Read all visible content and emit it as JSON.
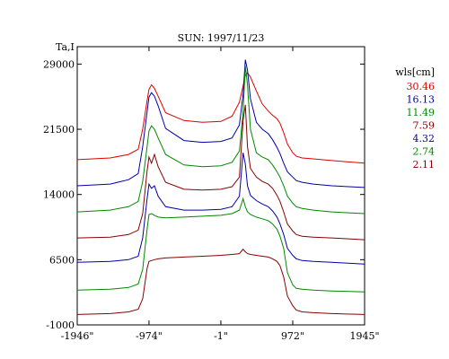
{
  "chart_data": {
    "type": "line",
    "title": "SUN: 1997/11/23",
    "ylabel": "Ta,I",
    "xlabel": "",
    "xlim": [
      -1946,
      1945
    ],
    "ylim": [
      -1000,
      31000
    ],
    "x_ticks": [
      -1946,
      -974,
      -1,
      972,
      1945
    ],
    "x_tick_labels": [
      "-1946\"",
      "-974\"",
      "-1\"",
      "972\"",
      "1945\""
    ],
    "y_ticks": [
      -1000,
      6500,
      14000,
      21500,
      29000
    ],
    "y_tick_labels": [
      "-1000",
      "6500",
      "14000",
      "21500",
      "29000"
    ],
    "legend_title": "wls[cm]",
    "legend_position": "right",
    "x": [
      -1946,
      -1500,
      -1250,
      -1120,
      -1060,
      -1000,
      -974,
      -940,
      -900,
      -850,
      -750,
      -500,
      -250,
      0,
      150,
      250,
      300,
      330,
      360,
      400,
      480,
      560,
      640,
      700,
      760,
      800,
      850,
      900,
      972,
      1020,
      1100,
      1250,
      1500,
      1945
    ],
    "series": [
      {
        "name": "30.46",
        "color": "#dd0000",
        "values": [
          18000,
          18200,
          18600,
          19200,
          21500,
          24800,
          26100,
          26600,
          26200,
          25300,
          23400,
          22500,
          22300,
          22400,
          23000,
          24600,
          26500,
          27700,
          28000,
          27500,
          25900,
          24400,
          23600,
          23100,
          22700,
          22200,
          21100,
          19800,
          18800,
          18400,
          18200,
          18100,
          17900,
          17600
        ]
      },
      {
        "name": "16.13",
        "color": "#0000aa",
        "values": [
          15000,
          15200,
          15700,
          16400,
          19500,
          23500,
          25200,
          25700,
          25300,
          24200,
          21600,
          20200,
          20000,
          20100,
          20500,
          22000,
          25500,
          29500,
          28300,
          25000,
          22300,
          21500,
          21000,
          20300,
          19400,
          18700,
          17600,
          16600,
          16000,
          15600,
          15400,
          15200,
          15000,
          14800
        ]
      },
      {
        "name": "11.49",
        "color": "#008800",
        "values": [
          12000,
          12200,
          12600,
          13200,
          15500,
          19500,
          21300,
          21900,
          21500,
          20500,
          18600,
          17400,
          17200,
          17300,
          17700,
          19000,
          23500,
          28800,
          26600,
          21500,
          18800,
          18300,
          18000,
          17400,
          16600,
          16000,
          15000,
          13800,
          13000,
          12600,
          12400,
          12200,
          12000,
          11800
        ]
      },
      {
        "name": "7.59",
        "color": "#880000",
        "values": [
          9000,
          9100,
          9400,
          9900,
          11800,
          16700,
          18300,
          17600,
          18600,
          17200,
          15400,
          14600,
          14500,
          14600,
          14900,
          16000,
          22500,
          24300,
          19500,
          17000,
          16000,
          15500,
          15200,
          14700,
          13900,
          13200,
          12000,
          10600,
          9800,
          9400,
          9200,
          9100,
          9000,
          8800
        ]
      },
      {
        "name": "4.32",
        "color": "#0000aa",
        "values": [
          6200,
          6300,
          6500,
          6900,
          9000,
          13500,
          15200,
          14700,
          15000,
          13800,
          12600,
          12200,
          12200,
          12300,
          12600,
          13800,
          18800,
          17500,
          15000,
          13900,
          13300,
          12900,
          12600,
          12100,
          11400,
          10600,
          9400,
          7800,
          7000,
          6600,
          6400,
          6300,
          6200,
          6000
        ]
      },
      {
        "name": "2.74",
        "color": "#008800",
        "values": [
          3000,
          3100,
          3300,
          3700,
          5400,
          10000,
          11700,
          11800,
          11600,
          11400,
          11300,
          11400,
          11500,
          11600,
          11800,
          12200,
          13500,
          12600,
          12000,
          11700,
          11400,
          11200,
          11000,
          10600,
          10000,
          9200,
          7800,
          5000,
          3600,
          3200,
          3100,
          3000,
          2900,
          2800
        ]
      },
      {
        "name": "2.11",
        "color": "#880000",
        "values": [
          200,
          300,
          500,
          800,
          2000,
          5500,
          6300,
          6400,
          6500,
          6600,
          6700,
          6800,
          6900,
          7000,
          7100,
          7200,
          7700,
          7400,
          7200,
          7100,
          7000,
          6900,
          6800,
          6600,
          6300,
          5800,
          4500,
          2300,
          1200,
          700,
          500,
          400,
          300,
          200
        ]
      }
    ]
  }
}
